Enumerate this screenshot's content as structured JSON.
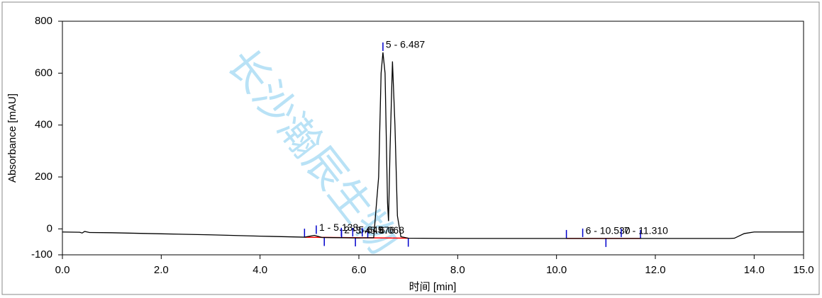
{
  "chart_data": {
    "type": "line",
    "xlabel": "时间 [min]",
    "ylabel": "Absorbance [mAU]",
    "watermark": "长沙瀚辰生物",
    "x": [
      0,
      0.35,
      0.4,
      0.45,
      0.55,
      1,
      2,
      3,
      4,
      4.9,
      5.1,
      5.25,
      5.6,
      6.0,
      6.3,
      6.4,
      6.45,
      6.487,
      6.53,
      6.58,
      6.6,
      6.63,
      6.68,
      6.73,
      6.78,
      6.85,
      7,
      8,
      10,
      12,
      13.5,
      13.6,
      13.8,
      14,
      15
    ],
    "series": [
      {
        "color": "#000000",
        "values": [
          -12,
          -13,
          -16,
          -10,
          -14,
          -15,
          -19,
          -23,
          -28,
          -32,
          -25,
          -33,
          -34,
          -35,
          -34,
          200,
          600,
          680,
          600,
          100,
          30,
          300,
          645,
          400,
          50,
          -30,
          -36,
          -37,
          -37,
          -37,
          -37,
          -36,
          -18,
          -12,
          -12
        ]
      }
    ],
    "peaks": [
      {
        "label": "1 - 5.138",
        "x": 5.138
      },
      {
        "label": "2 - 5.645",
        "x": 5.645
      },
      {
        "label": "3 - 5.876",
        "x": 5.876
      },
      {
        "label": "4 - 6.068",
        "x": 6.068
      },
      {
        "label": "5 - 6.487",
        "x": 6.487
      },
      {
        "label": "6 - 10.530",
        "x": 10.53
      },
      {
        "label": "7 - 11.310",
        "x": 11.31
      }
    ],
    "integration": [
      [
        4.9,
        7.0
      ],
      [
        10.2,
        11.7
      ]
    ],
    "boundary_color": "#0000cc",
    "integration_color": "#ff0000",
    "boundaries": [
      4.9,
      5.3,
      5.65,
      5.93,
      6.18,
      7.0,
      10.2,
      11.0,
      11.7
    ],
    "xlim": [
      0,
      15
    ],
    "ylim": [
      -100,
      800
    ],
    "xticks": [
      {
        "value": 0,
        "label": "0.0"
      },
      {
        "value": 2,
        "label": "2.0"
      },
      {
        "value": 4,
        "label": "4.0"
      },
      {
        "value": 6,
        "label": "6.0"
      },
      {
        "value": 8,
        "label": "8.0"
      },
      {
        "value": 10,
        "label": "10.0"
      },
      {
        "value": 12,
        "label": "12.0"
      },
      {
        "value": 14,
        "label": "14.0"
      },
      {
        "value": 15,
        "label": "15.0"
      }
    ],
    "yticks": [
      -100,
      0,
      200,
      400,
      600,
      800
    ]
  }
}
